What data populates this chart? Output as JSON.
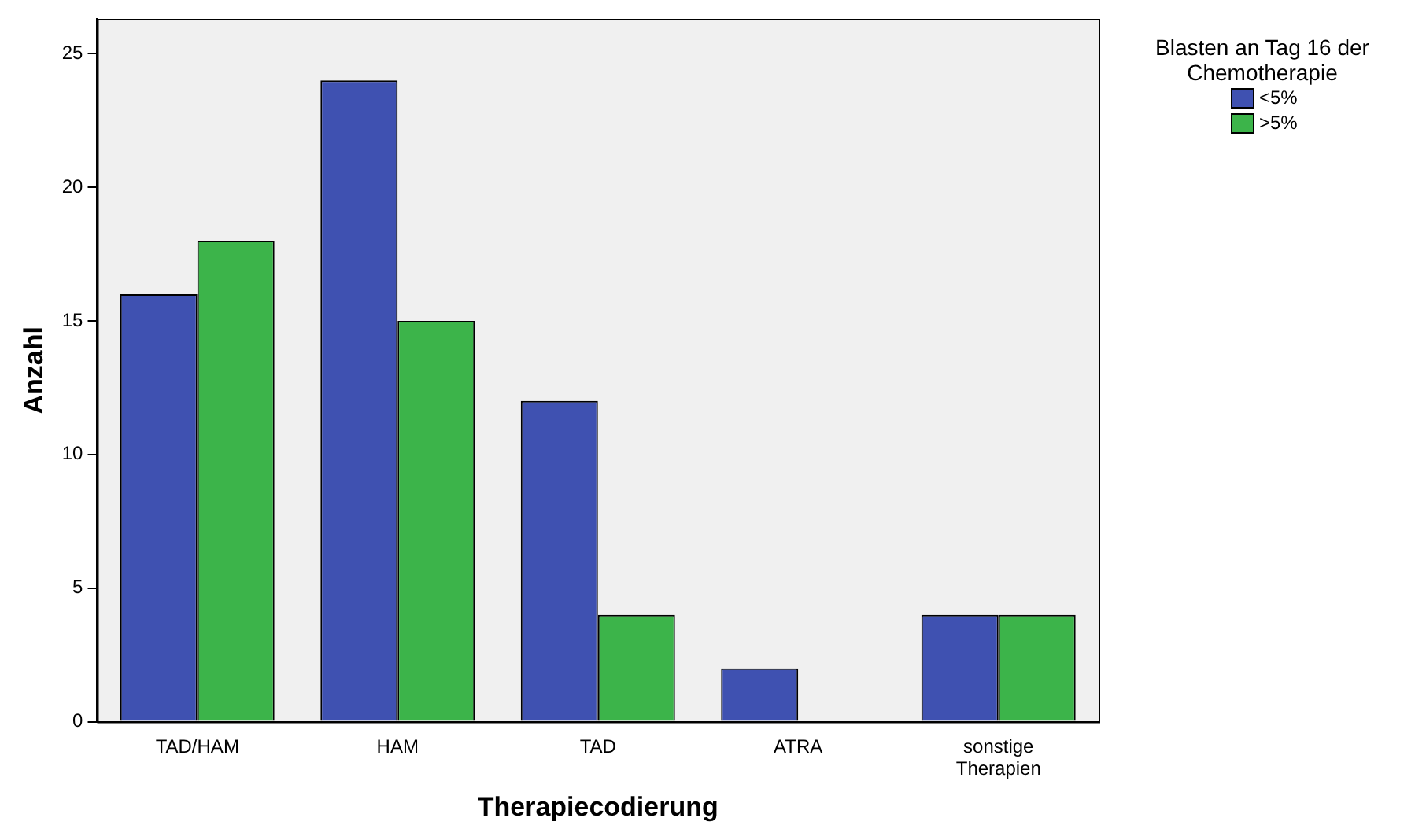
{
  "chart_data": {
    "type": "bar",
    "xlabel": "Therapiecodierung",
    "ylabel": "Anzahl",
    "categories": [
      "TAD/HAM",
      "HAM",
      "TAD",
      "ATRA",
      "sonstige Therapien"
    ],
    "series": [
      {
        "name": "<5%",
        "color": "#3f51b1",
        "values": [
          16,
          24,
          12,
          2,
          4
        ]
      },
      {
        "name": ">5%",
        "color": "#3cb44a",
        "values": [
          18,
          15,
          4,
          0,
          4
        ]
      }
    ],
    "ylim": [
      0,
      26.3
    ],
    "yticks": [
      0,
      5,
      10,
      15,
      20,
      25
    ],
    "legend": "top right",
    "legend_title": "Blasten an Tag 16 der Chemotherapie"
  }
}
